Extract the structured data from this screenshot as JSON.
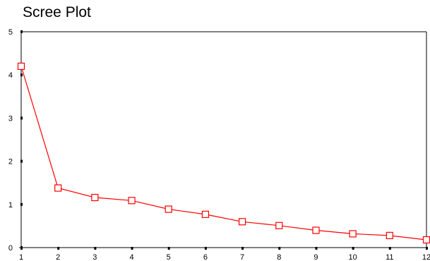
{
  "chart_data": {
    "type": "line",
    "title": "Scree Plot",
    "xlabel": "",
    "ylabel": "",
    "x": [
      1,
      2,
      3,
      4,
      5,
      6,
      7,
      8,
      9,
      10,
      11,
      12
    ],
    "series": [
      {
        "values": [
          4.2,
          1.38,
          1.16,
          1.09,
          0.89,
          0.77,
          0.6,
          0.51,
          0.4,
          0.32,
          0.28,
          0.18
        ]
      }
    ],
    "xlim": [
      1,
      12
    ],
    "ylim": [
      0,
      5
    ],
    "x_ticks": [
      "1",
      "2",
      "3",
      "4",
      "5",
      "6",
      "7",
      "8",
      "9",
      "10",
      "11",
      "12"
    ],
    "y_ticks": [
      "0",
      "1",
      "2",
      "3",
      "4",
      "5"
    ],
    "grid": false,
    "legend": "none",
    "colors": {
      "line": "#ff0000",
      "marker": "#ff0000",
      "marker_fill": "#ffffff",
      "axis": "#000000"
    },
    "marker": "square"
  }
}
